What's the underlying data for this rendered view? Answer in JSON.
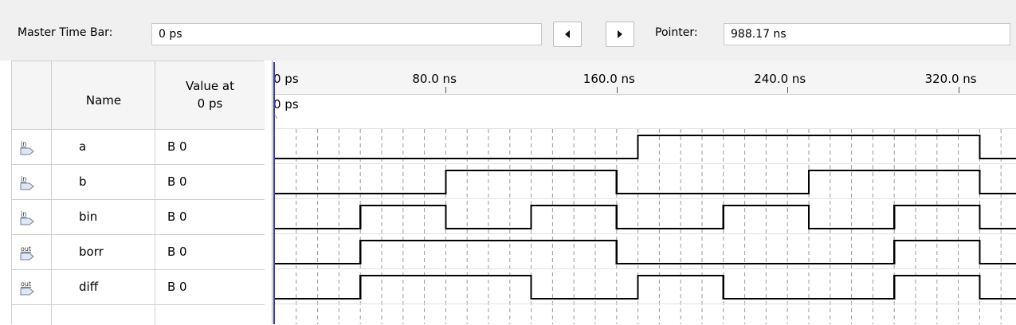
{
  "toolbar": {
    "master_time_bar_label": "Master Time Bar:",
    "master_time_bar_value": "0 ps",
    "prev_icon": "left-arrow-icon",
    "next_icon": "right-arrow-icon",
    "pointer_label": "Pointer:",
    "pointer_value": "988.17 ns"
  },
  "table": {
    "headers": {
      "name": "Name",
      "value_line1": "Value at",
      "value_line2": "0 ps"
    },
    "signals": [
      {
        "direction": "in",
        "icon": "input-pin-icon",
        "name": "a",
        "value": "B 0"
      },
      {
        "direction": "in",
        "icon": "input-pin-icon",
        "name": "b",
        "value": "B 0"
      },
      {
        "direction": "in",
        "icon": "input-pin-icon",
        "name": "bin",
        "value": "B 0"
      },
      {
        "direction": "out",
        "icon": "output-pin-icon",
        "name": "borr",
        "value": "B 0"
      },
      {
        "direction": "out",
        "icon": "output-pin-icon",
        "name": "diff",
        "value": "B 0"
      }
    ]
  },
  "timeline": {
    "ticks": [
      "0 ps",
      "80.0 ns",
      "160.0 ns",
      "240.0 ns",
      "320.0 ns"
    ],
    "cursor_label": "0 ps"
  },
  "chart_data": {
    "type": "line",
    "x_unit": "ns",
    "xlim": [
      0,
      340
    ],
    "series": [
      {
        "name": "a",
        "transitions_ns": [
          0,
          170,
          330
        ],
        "levels": [
          0,
          1,
          0
        ]
      },
      {
        "name": "b",
        "transitions_ns": [
          0,
          80,
          160,
          250,
          330
        ],
        "levels": [
          0,
          1,
          0,
          1,
          0
        ]
      },
      {
        "name": "bin",
        "transitions_ns": [
          0,
          40,
          80,
          120,
          160,
          210,
          250,
          290,
          330
        ],
        "levels": [
          0,
          1,
          0,
          1,
          0,
          1,
          0,
          1,
          0
        ]
      },
      {
        "name": "borr",
        "transitions_ns": [
          0,
          40,
          160,
          290,
          330
        ],
        "levels": [
          0,
          1,
          0,
          1,
          0
        ]
      },
      {
        "name": "diff",
        "transitions_ns": [
          0,
          40,
          120,
          170,
          210,
          290,
          330
        ],
        "levels": [
          0,
          1,
          0,
          1,
          0,
          1,
          0
        ]
      }
    ]
  },
  "colors": {
    "cursor": "#3a3fb0",
    "wave": "#000000",
    "grid": "#9a9a9a",
    "header_bg": "#f5f5f5",
    "toolbar_bg": "#f0f0f0"
  }
}
